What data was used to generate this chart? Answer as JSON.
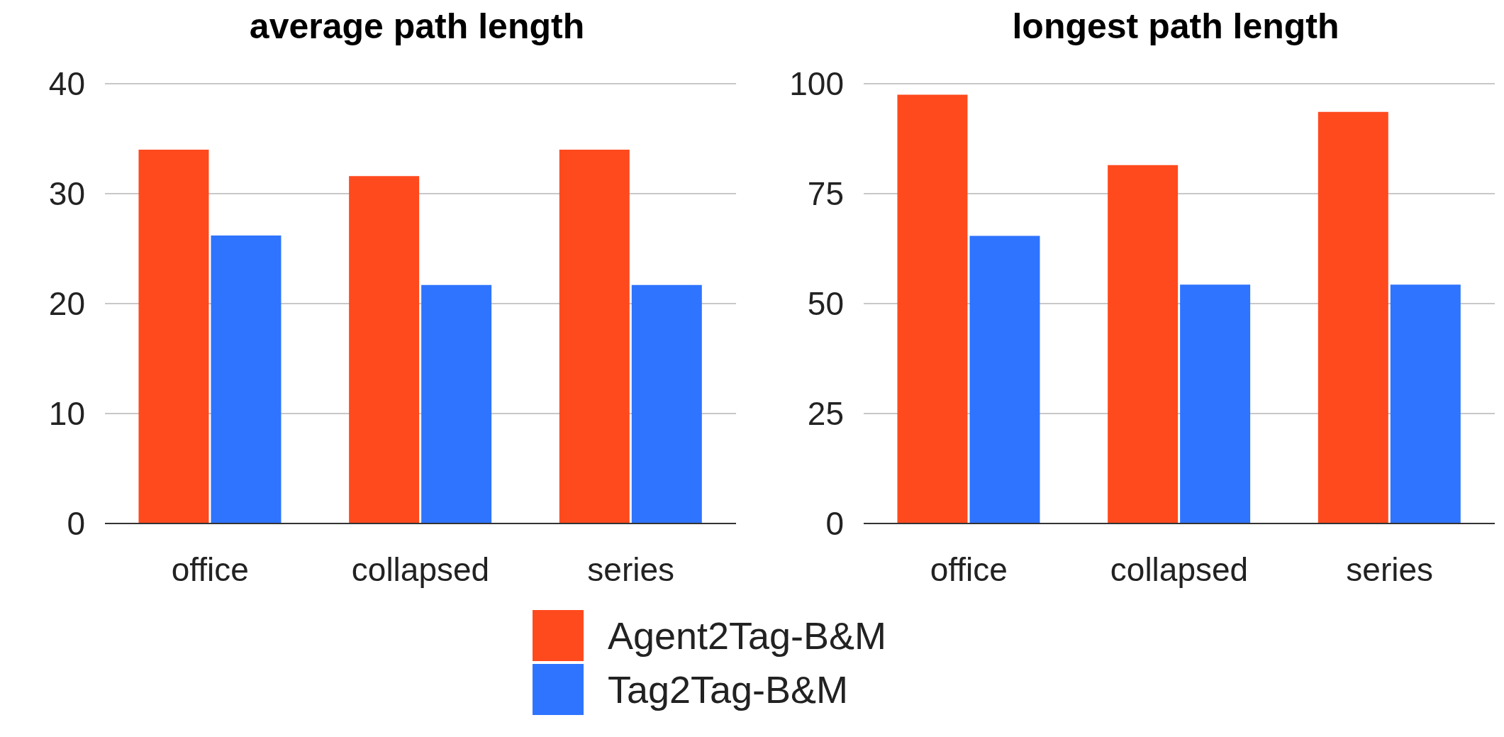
{
  "chart_data": [
    {
      "type": "bar",
      "title": "average path length",
      "categories": [
        "office",
        "collapsed",
        "series"
      ],
      "series": [
        {
          "name": "Agent2Tag-B&M",
          "color": "#ff4a1e",
          "values": [
            34,
            31.6,
            34
          ]
        },
        {
          "name": "Tag2Tag-B&M",
          "color": "#2f74ff",
          "values": [
            26.2,
            21.7,
            21.7
          ]
        }
      ],
      "ylim": [
        0,
        40
      ],
      "yticks": [
        0,
        10,
        20,
        30,
        40
      ],
      "grid": "y",
      "legend": "bottom"
    },
    {
      "type": "bar",
      "title": "longest path length",
      "categories": [
        "office",
        "collapsed",
        "series"
      ],
      "series": [
        {
          "color": "#ff4a1e",
          "values": [
            97.5,
            81.5,
            93.6
          ]
        },
        {
          "color": "#2f74ff",
          "values": [
            65.4,
            54.3,
            54.3
          ]
        }
      ],
      "ylim": [
        0,
        100
      ],
      "yticks": [
        0,
        25,
        50,
        75,
        100
      ],
      "grid": "y"
    }
  ]
}
